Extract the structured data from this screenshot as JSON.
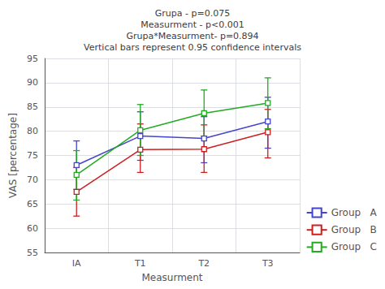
{
  "chart_data": {
    "type": "line",
    "title": "Grupa - p=0.075\nMeasurment - p<0.001\nGrupa*Measurment- p=0.894\nVertical bars represent 0.95 confidence intervals",
    "x_label": "Measurment",
    "y_label": "VAS [percentage]",
    "categories": [
      "IA",
      "T1",
      "T2",
      "T3"
    ],
    "ylim": [
      55,
      95
    ],
    "yticks": [
      55,
      60,
      65,
      70,
      75,
      80,
      85,
      90,
      95
    ],
    "grid": true,
    "legend": "lower right",
    "marker": "square",
    "series": [
      {
        "name": "Group   A",
        "color": "#4444cc",
        "values": [
          73.0,
          79.0,
          78.5,
          82.0
        ],
        "ci_lower": [
          68.0,
          74.0,
          73.5,
          76.5
        ],
        "ci_upper": [
          78.0,
          84.0,
          83.0,
          87.0
        ]
      },
      {
        "name": "Group   B",
        "color": "#cc2020",
        "values": [
          67.5,
          76.2,
          76.3,
          79.8
        ],
        "ci_lower": [
          62.5,
          71.5,
          71.5,
          74.5
        ],
        "ci_upper": [
          72.5,
          81.5,
          81.3,
          84.5
        ]
      },
      {
        "name": "Group   C",
        "color": "#22aa22",
        "values": [
          71.0,
          80.2,
          83.7,
          85.8
        ],
        "ci_lower": [
          65.8,
          75.0,
          79.0,
          80.5
        ],
        "ci_upper": [
          76.0,
          85.5,
          88.5,
          91.0
        ]
      }
    ]
  }
}
